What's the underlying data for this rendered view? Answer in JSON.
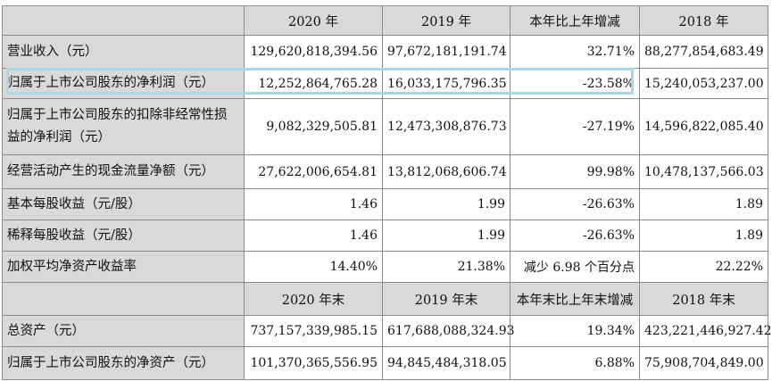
{
  "header1": [
    "",
    "2020 年",
    "2019 年",
    "本年比上年增减",
    "2018 年"
  ],
  "rows1": [
    {
      "label": "营业收入（元）",
      "values": [
        "129,620,818,394.56",
        "97,672,181,191.74",
        "32.71%",
        "88,277,854,683.49"
      ]
    },
    {
      "label": "归属于上市公司股东的净利润（元）",
      "values": [
        "12,252,864,765.28",
        "16,033,175,796.35",
        "-23.58%",
        "15,240,053,237.00"
      ]
    },
    {
      "label": "归属于上市公司股东的扣除非经常性损益的净利润（元）",
      "values": [
        "9,082,329,505.81",
        "12,473,308,876.73",
        "-27.19%",
        "14,596,822,085.40"
      ]
    },
    {
      "label": "经营活动产生的现金流量净额（元）",
      "values": [
        "27,622,006,654.81",
        "13,812,068,606.74",
        "99.98%",
        "10,478,137,566.03"
      ]
    },
    {
      "label": "基本每股收益（元/股）",
      "values": [
        "1.46",
        "1.99",
        "-26.63%",
        "1.89"
      ]
    },
    {
      "label": "稀释每股收益（元/股）",
      "values": [
        "1.46",
        "1.99",
        "-26.63%",
        "1.89"
      ]
    },
    {
      "label": "加权平均净资产收益率",
      "values": [
        "14.40%",
        "21.38%",
        "减少 6.98 个百分点",
        "22.22%"
      ]
    }
  ],
  "header2": [
    "",
    "2020 年末",
    "2019 年末",
    "本年末比上年末增减",
    "2018 年末"
  ],
  "rows2": [
    {
      "label": "总资产（元）",
      "values": [
        "737,157,339,985.15",
        "617,688,088,324.93",
        "19.34%",
        "423,221,446,927.42"
      ]
    },
    {
      "label": "归属于上市公司股东的净资产（元）",
      "values": [
        "101,370,365,556.95",
        "94,845,484,318.05",
        "6.88%",
        "75,908,704,849.00"
      ]
    }
  ],
  "highlight_color": "#a9d7ea"
}
